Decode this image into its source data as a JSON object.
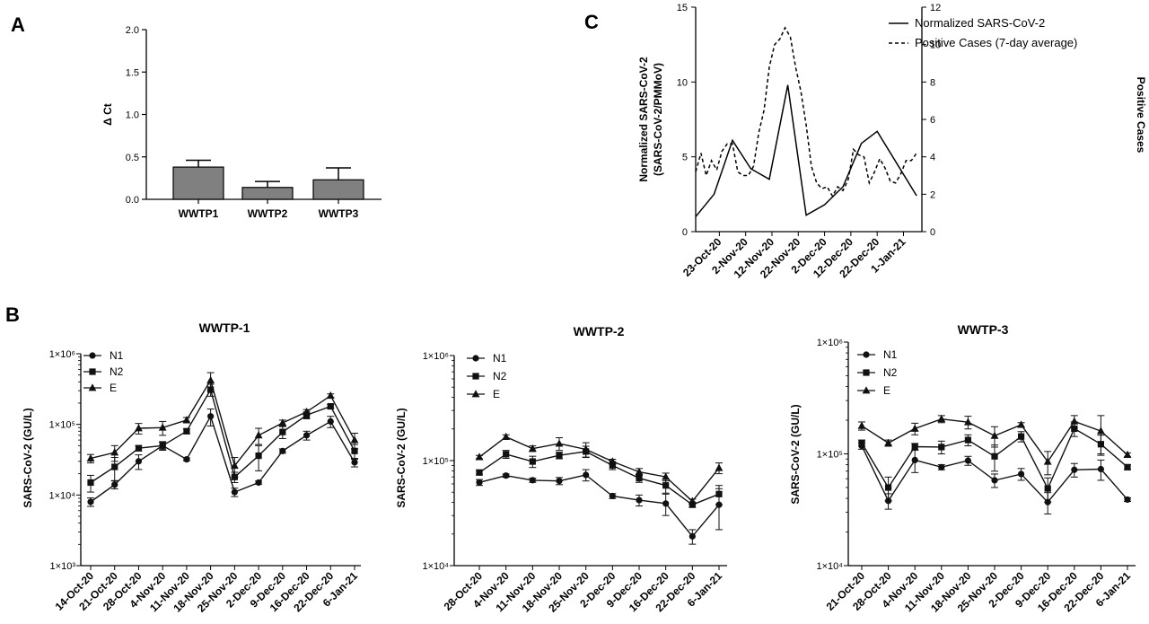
{
  "panels": {
    "a": "A",
    "b": "B",
    "c": "C"
  },
  "chart_data": [
    {
      "id": "A",
      "type": "bar",
      "title": "",
      "xlabel": "",
      "ylabel": "Δ Ct",
      "ylim": [
        0,
        2.0
      ],
      "yticks": [
        0.0,
        0.5,
        1.0,
        1.5,
        2.0
      ],
      "ytick_labels": [
        "0.0",
        "0.5",
        "1.0",
        "1.5",
        "2.0"
      ],
      "categories": [
        "WWTP1",
        "WWTP2",
        "WWTP3"
      ],
      "values": [
        0.38,
        0.14,
        0.23
      ],
      "errors": [
        0.08,
        0.07,
        0.14
      ],
      "bar_color": "#808080"
    },
    {
      "id": "C",
      "type": "line",
      "title": "",
      "xlabel": "",
      "ylabel_left": "Normalized SARS-CoV-2\n(SARS-CoV-2/PMMoV)",
      "ylabel_right": "Positive Cases",
      "ylim_left": [
        0,
        15
      ],
      "yticks_left": [
        0,
        5,
        10,
        15
      ],
      "ylim_right": [
        0,
        12
      ],
      "yticks_right": [
        0,
        2,
        4,
        6,
        8,
        10,
        12
      ],
      "xlim": [
        "2020-10-14",
        "2021-01-08"
      ],
      "xticks": [
        "2020-10-23",
        "2020-11-02",
        "2020-11-12",
        "2020-11-22",
        "2020-12-02",
        "2020-12-12",
        "2020-12-22",
        "2021-01-01"
      ],
      "xtick_labels": [
        "23-Oct-20",
        "2-Nov-20",
        "12-Nov-20",
        "22-Nov-20",
        "2-Dec-20",
        "12-Dec-20",
        "22-Dec-20",
        "1-Jan-21"
      ],
      "legend_position": "top-right",
      "series": [
        {
          "name": "Normalized SARS-CoV-2",
          "axis": "left",
          "style": "solid",
          "x": [
            "2020-10-14",
            "2020-10-21",
            "2020-10-28",
            "2020-11-04",
            "2020-11-11",
            "2020-11-18",
            "2020-11-25",
            "2020-12-02",
            "2020-12-09",
            "2020-12-16",
            "2020-12-22",
            "2021-01-06"
          ],
          "y": [
            1.0,
            2.5,
            6.1,
            4.2,
            3.5,
            9.8,
            1.1,
            1.8,
            3.0,
            5.9,
            6.7,
            2.4
          ]
        },
        {
          "name": "Positive Cases (7-day average)",
          "axis": "right",
          "style": "dashed",
          "x": [
            "2020-10-14",
            "2020-10-16",
            "2020-10-18",
            "2020-10-20",
            "2020-10-22",
            "2020-10-24",
            "2020-10-26",
            "2020-10-28",
            "2020-10-30",
            "2020-11-01",
            "2020-11-03",
            "2020-11-05",
            "2020-11-07",
            "2020-11-09",
            "2020-11-11",
            "2020-11-13",
            "2020-11-15",
            "2020-11-17",
            "2020-11-19",
            "2020-11-21",
            "2020-11-23",
            "2020-11-25",
            "2020-11-27",
            "2020-11-29",
            "2020-12-01",
            "2020-12-03",
            "2020-12-05",
            "2020-12-07",
            "2020-12-09",
            "2020-12-11",
            "2020-12-13",
            "2020-12-15",
            "2020-12-17",
            "2020-12-19",
            "2020-12-21",
            "2020-12-23",
            "2020-12-25",
            "2020-12-27",
            "2020-12-29",
            "2020-12-31",
            "2021-01-02",
            "2021-01-04",
            "2021-01-06"
          ],
          "y": [
            3.2,
            4.2,
            3.0,
            3.8,
            3.3,
            4.3,
            4.7,
            4.7,
            3.2,
            3.0,
            3.0,
            3.5,
            5.3,
            6.5,
            8.8,
            10.0,
            10.3,
            10.9,
            10.4,
            8.8,
            7.5,
            5.7,
            3.5,
            2.6,
            2.3,
            2.4,
            1.9,
            2.4,
            2.2,
            2.8,
            4.4,
            4.1,
            4.0,
            2.6,
            3.2,
            3.9,
            3.4,
            2.7,
            2.6,
            3.1,
            3.8,
            3.8,
            4.2
          ]
        }
      ]
    },
    {
      "id": "B1",
      "type": "line",
      "title": "WWTP-1",
      "xlabel": "",
      "ylabel": "SARS-CoV-2 (GU/L)",
      "yscale": "log",
      "ylim": [
        1000,
        1000000
      ],
      "ytick_labels": [
        "1×10³",
        "1×10⁴",
        "1×10⁵",
        "1×10⁶"
      ],
      "categories": [
        "14-Oct-20",
        "21-Oct-20",
        "28-Oct-20",
        "4-Nov-20",
        "11-Nov-20",
        "18-Nov-20",
        "25-Nov-20",
        "2-Dec-20",
        "9-Dec-20",
        "16-Dec-20",
        "22-Dec-20",
        "6-Jan-21"
      ],
      "legend_position": "top-left",
      "series": [
        {
          "name": "N1",
          "marker": "circle",
          "values": [
            8000,
            14000,
            30000,
            50000,
            32000,
            130000,
            11000,
            15000,
            42000,
            70000,
            110000,
            29000
          ],
          "errors": [
            1100,
            1800,
            7000,
            7000,
            1500,
            35000,
            1500,
            800,
            3000,
            10000,
            20000,
            4000
          ]
        },
        {
          "name": "N2",
          "marker": "square",
          "values": [
            15000,
            25000,
            46000,
            50000,
            80000,
            310000,
            18000,
            36000,
            78000,
            135000,
            180000,
            42000
          ],
          "errors": [
            4000,
            9000,
            4000,
            6000,
            6000,
            60000,
            3000,
            14000,
            15000,
            15000,
            12000,
            10000
          ]
        },
        {
          "name": "E",
          "marker": "triangle",
          "values": [
            33000,
            40000,
            88000,
            90000,
            115000,
            420000,
            26000,
            70000,
            105000,
            150000,
            255000,
            60000
          ],
          "errors": [
            4500,
            10000,
            15000,
            20000,
            10000,
            120000,
            8000,
            18000,
            10000,
            12000,
            15000,
            15000
          ]
        }
      ]
    },
    {
      "id": "B2",
      "type": "line",
      "title": "WWTP-2",
      "xlabel": "",
      "ylabel": "SARS-CoV-2 (GU/L)",
      "yscale": "log",
      "ylim": [
        10000,
        1000000
      ],
      "ytick_labels": [
        "1×10⁴",
        "1×10⁵",
        "1×10⁶"
      ],
      "categories": [
        "28-Oct-20",
        "4-Nov-20",
        "11-Nov-20",
        "18-Nov-20",
        "25-Nov-20",
        "2-Dec-20",
        "9-Dec-20",
        "16-Dec-20",
        "22-Dec-20",
        "6-Jan-21"
      ],
      "legend_position": "top-left",
      "series": [
        {
          "name": "N1",
          "marker": "circle",
          "values": [
            62000,
            72000,
            65000,
            64000,
            73000,
            46000,
            42000,
            39000,
            19000,
            38000
          ],
          "errors": [
            4000,
            2500,
            3000,
            5000,
            9000,
            2500,
            5000,
            9000,
            3000,
            16000
          ]
        },
        {
          "name": "N2",
          "marker": "square",
          "values": [
            77000,
            115000,
            98000,
            112000,
            122000,
            90000,
            68000,
            58000,
            38000,
            48000
          ],
          "errors": [
            4000,
            10000,
            12000,
            8000,
            15000,
            8000,
            6000,
            9000,
            2000,
            10000
          ]
        },
        {
          "name": "E",
          "marker": "triangle",
          "values": [
            108000,
            168000,
            130000,
            145000,
            128000,
            98000,
            78000,
            70000,
            41000,
            85000
          ],
          "errors": [
            4000,
            8000,
            8000,
            20000,
            20000,
            5000,
            6000,
            6000,
            2000,
            10000
          ]
        }
      ]
    },
    {
      "id": "B3",
      "type": "line",
      "title": "WWTP-3",
      "xlabel": "",
      "ylabel": "SARS-CoV-2 (GU/L)",
      "yscale": "log",
      "ylim": [
        10000,
        1000000
      ],
      "ytick_labels": [
        "1×10⁴",
        "1×10⁵",
        "1×10⁶"
      ],
      "categories": [
        "21-Oct-20",
        "28-Oct-20",
        "4-Nov-20",
        "11-Nov-20",
        "18-Nov-20",
        "25-Nov-20",
        "2-Dec-20",
        "9-Dec-20",
        "16-Dec-20",
        "22-Dec-20",
        "6-Jan-21"
      ],
      "legend_position": "top-left",
      "series": [
        {
          "name": "N1",
          "marker": "circle",
          "values": [
            118000,
            38000,
            88000,
            76000,
            87000,
            58000,
            66000,
            37000,
            72000,
            73000,
            39000
          ],
          "errors": [
            8000,
            6000,
            20000,
            4000,
            8000,
            8000,
            8000,
            8000,
            10000,
            15000,
            1500
          ]
        },
        {
          "name": "N2",
          "marker": "square",
          "values": [
            125000,
            50000,
            116000,
            115000,
            133000,
            95000,
            143000,
            49000,
            168000,
            122000,
            76000
          ],
          "errors": [
            8000,
            12000,
            8000,
            15000,
            15000,
            25000,
            15000,
            12000,
            25000,
            25000,
            4000
          ]
        },
        {
          "name": "E",
          "marker": "triangle",
          "values": [
            178000,
            125000,
            168000,
            205000,
            192000,
            145000,
            182000,
            85000,
            195000,
            160000,
            98000
          ],
          "errors": [
            15000,
            8000,
            20000,
            15000,
            25000,
            30000,
            8000,
            20000,
            25000,
            60000,
            4000
          ]
        }
      ]
    }
  ]
}
